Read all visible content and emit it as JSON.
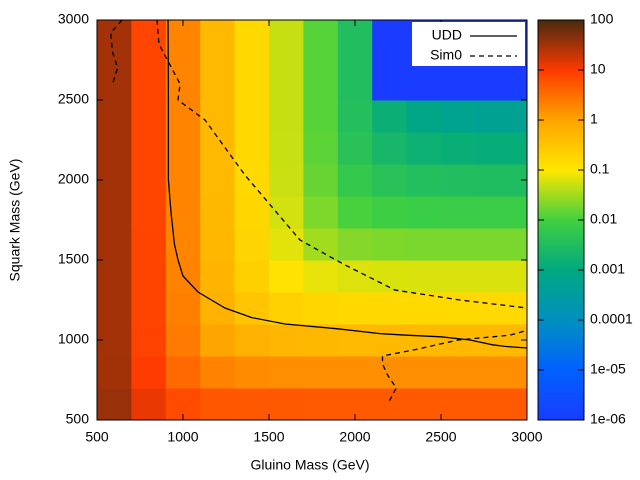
{
  "chart_data": {
    "type": "heatmap",
    "xlabel": "Gluino Mass (GeV)",
    "ylabel": "Squark Mass (GeV)",
    "xlim": [
      500,
      3000
    ],
    "ylim": [
      500,
      3000
    ],
    "xticks": [
      500,
      1000,
      1500,
      2000,
      2500,
      3000
    ],
    "yticks": [
      500,
      1000,
      1500,
      2000,
      2500,
      3000
    ],
    "x": [
      600,
      800,
      1000,
      1200,
      1400,
      1600,
      1800,
      2000,
      2200,
      2400,
      2600,
      2800,
      3000
    ],
    "y": [
      600,
      800,
      1000,
      1200,
      1400,
      1600,
      1800,
      2000,
      2200,
      2400,
      2600,
      2800,
      3000
    ],
    "z": [
      [
        37,
        13,
        7.0,
        5.5,
        5.2,
        5.1,
        5.0,
        5.0,
        5.0,
        5.0,
        5.0,
        5.0,
        5.0
      ],
      [
        33,
        9.5,
        3.6,
        2.1,
        1.7,
        1.6,
        1.6,
        1.6,
        1.6,
        1.6,
        1.6,
        1.6,
        1.6
      ],
      [
        32,
        8.4,
        2.5,
        1.0,
        0.66,
        0.55,
        0.51,
        0.5,
        0.5,
        0.5,
        0.5,
        0.5,
        0.5
      ],
      [
        32,
        8.1,
        2.2,
        0.66,
        0.32,
        0.21,
        0.17,
        0.16,
        0.16,
        0.16,
        0.16,
        0.16,
        0.16
      ],
      [
        32,
        8.0,
        2.1,
        0.56,
        0.22,
        0.11,
        0.076,
        0.066,
        0.064,
        0.063,
        0.063,
        0.063,
        0.063
      ],
      [
        32,
        8.0,
        2.0,
        0.52,
        0.18,
        0.07,
        0.033,
        0.023,
        0.021,
        0.02,
        0.02,
        0.02,
        0.02
      ],
      [
        32,
        7.9,
        2.0,
        0.51,
        0.17,
        0.058,
        0.021,
        0.011,
        0.0089,
        0.0082,
        0.008,
        0.008,
        0.008
      ],
      [
        32,
        7.9,
        2.0,
        0.5,
        0.16,
        0.053,
        0.016,
        0.0064,
        0.0042,
        0.0035,
        0.0033,
        0.0032,
        0.0032
      ],
      [
        32,
        7.9,
        2.0,
        0.5,
        0.16,
        0.051,
        0.014,
        0.0045,
        0.0023,
        0.0016,
        0.0014,
        0.0013,
        0.0013
      ],
      [
        32,
        7.9,
        2.0,
        0.5,
        0.16,
        0.05,
        0.013,
        0.0037,
        0.0015,
        0.00082,
        0.0006,
        0.00053,
        0.00051
      ],
      [
        32,
        7.9,
        2.0,
        0.5,
        0.16,
        0.05,
        0.013,
        0.0034,
        1e-06,
        1e-06,
        1e-06,
        1e-06,
        1e-06
      ],
      [
        32,
        7.9,
        2.0,
        0.5,
        0.16,
        0.05,
        0.013,
        0.0034,
        1e-06,
        1e-06,
        1e-06,
        1e-06,
        1e-06
      ],
      [
        32,
        7.9,
        2.0,
        0.5,
        0.16,
        0.05,
        0.013,
        0.0034,
        1e-06,
        1e-06,
        1e-06,
        1e-06,
        1e-06
      ]
    ],
    "zlim": [
      1e-06,
      100
    ],
    "zlog": true,
    "zticks": [
      100,
      10,
      1,
      0.1,
      0.01,
      0.001,
      0.0001,
      {
        "value": 1e-05,
        "label": "1e-05"
      },
      {
        "value": 1e-06,
        "label": "1e-06"
      }
    ],
    "colormap": [
      "#4a2a10",
      "#ff3a00",
      "#ffa500",
      "#ffe600",
      "#40d040",
      "#00a880",
      "#0090c0",
      "#0060ff",
      "#1a3cff"
    ],
    "legend": "top-right",
    "lines": [
      {
        "name": "UDD",
        "color": "#000000",
        "dashed": false,
        "x": [
          913,
          915,
          915,
          930,
          950,
          971,
          1000,
          1087,
          1244,
          1400,
          1593,
          1900,
          2145,
          2300,
          2500,
          2669,
          2800,
          2872,
          3000
        ],
        "y": [
          3000,
          2500,
          2000,
          1800,
          1600,
          1500,
          1400,
          1300,
          1200,
          1140,
          1100,
          1070,
          1040,
          1030,
          1020,
          1000,
          970,
          960,
          950
        ]
      },
      {
        "name": "Sim0",
        "color": "#000000",
        "dashed": true,
        "x": [
          849,
          860,
          924,
          983,
          971,
          1128,
          1360,
          1680,
          1942,
          2233,
          2610,
          3000,
          null,
          2200,
          2240,
          2190,
          2160,
          2160,
          2350,
          2600,
          2900,
          3000,
          null,
          645,
          580,
          590,
          620,
          590
        ],
        "y": [
          3000,
          2850,
          2720,
          2600,
          2500,
          2375,
          2031,
          1625,
          1469,
          1312,
          1250,
          1200,
          null,
          620,
          700,
          780,
          850,
          900,
          940,
          1000,
          1030,
          1060,
          null,
          3000,
          2920,
          2800,
          2700,
          2600
        ]
      }
    ]
  }
}
